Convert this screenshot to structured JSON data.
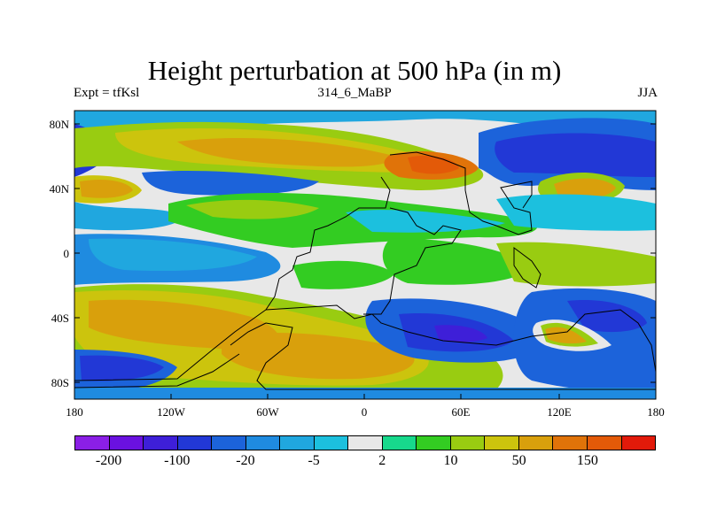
{
  "title": "Height perturbation at 500 hPa (in m)",
  "subtitle_left": "Expt = tfKsl",
  "subtitle_center": "314_6_MaBP",
  "subtitle_right": "JJA",
  "y_ticks": [
    "80N",
    "40N",
    "0",
    "40S",
    "80S"
  ],
  "x_ticks": [
    "180",
    "120W",
    "60W",
    "0",
    "60E",
    "120E",
    "180"
  ],
  "colorbar": {
    "colors": [
      "#8b1fe6",
      "#6a11e0",
      "#3e1fd8",
      "#2238d6",
      "#1c63da",
      "#1f8be0",
      "#20a7df",
      "#1cc0de",
      "#e8e8e8",
      "#17d98c",
      "#33cc22",
      "#99cc11",
      "#ccc40d",
      "#d9a00c",
      "#e07309",
      "#e35a08",
      "#e21a0a"
    ],
    "labels": [
      "-200",
      "-100",
      "-20",
      "-5",
      "2",
      "10",
      "50",
      "150"
    ]
  },
  "fill_colors": {
    "land_outline": "#000000",
    "neutral": "#e8e8e8"
  }
}
